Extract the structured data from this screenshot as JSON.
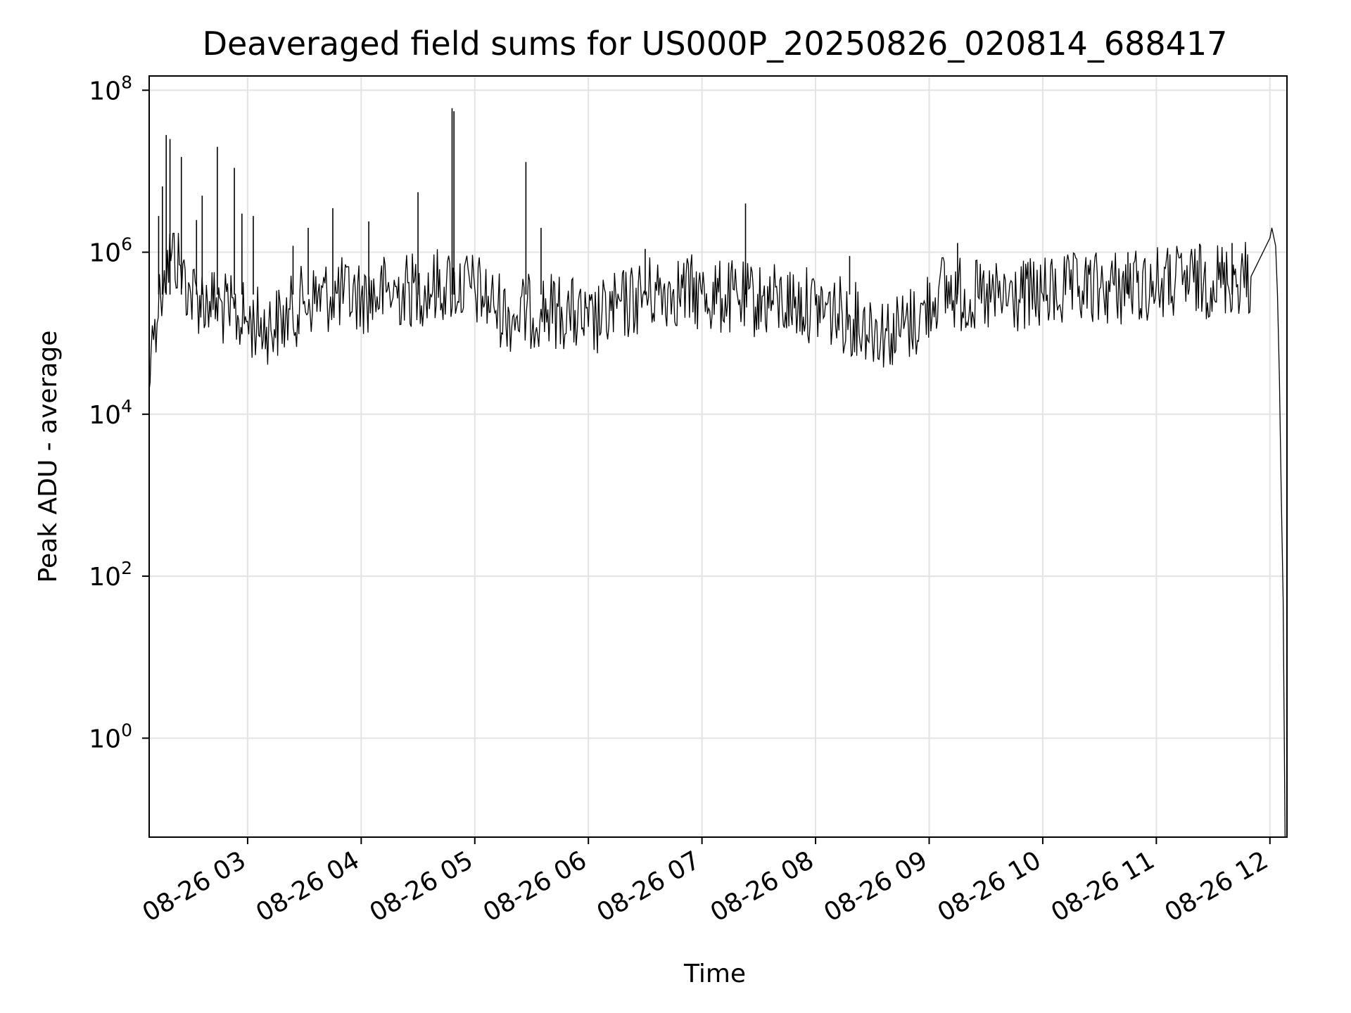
{
  "chart_data": {
    "type": "line",
    "title": "Deaveraged field sums for US000P_20250826_020814_688417",
    "xlabel": "Time",
    "ylabel": "Peak ADU - average",
    "yscale": "log",
    "ylim": [
      0.06,
      150000000
    ],
    "xlim": [
      "08-26 02:08",
      "08-26 12:09"
    ],
    "grid": true,
    "line_color": "#000000",
    "xticks": [
      "08-26 03",
      "08-26 04",
      "08-26 05",
      "08-26 06",
      "08-26 07",
      "08-26 08",
      "08-26 09",
      "08-26 10",
      "08-26 11",
      "08-26 12"
    ],
    "yticks": [
      {
        "base": "10",
        "exp": "0"
      },
      {
        "base": "10",
        "exp": "2"
      },
      {
        "base": "10",
        "exp": "4"
      },
      {
        "base": "10",
        "exp": "6"
      },
      {
        "base": "10",
        "exp": "8"
      }
    ],
    "series": [
      {
        "points": [
          [
            "08-26 02:08",
            20000
          ],
          [
            "08-26 02:09",
            60000
          ],
          [
            "08-26 02:11",
            150000
          ],
          [
            "08-26 02:14",
            300000
          ],
          [
            "08-26 02:16",
            600000
          ],
          [
            "08-26 02:20",
            1000000
          ],
          [
            "08-26 02:24",
            700000
          ],
          [
            "08-26 02:30",
            300000
          ],
          [
            "08-26 02:40",
            250000
          ],
          [
            "08-26 02:50",
            180000
          ],
          [
            "08-26 03:00",
            140000
          ],
          [
            "08-26 03:10",
            120000
          ],
          [
            "08-26 03:20",
            150000
          ],
          [
            "08-26 03:30",
            250000
          ],
          [
            "08-26 03:45",
            300000
          ],
          [
            "08-26 04:00",
            280000
          ],
          [
            "08-26 04:15",
            320000
          ],
          [
            "08-26 04:30",
            350000
          ],
          [
            "08-26 04:45",
            400000
          ],
          [
            "08-26 05:00",
            350000
          ],
          [
            "08-26 05:10",
            220000
          ],
          [
            "08-26 05:20",
            160000
          ],
          [
            "08-26 05:35",
            200000
          ],
          [
            "08-26 05:50",
            180000
          ],
          [
            "08-26 06:00",
            120000
          ],
          [
            "08-26 06:15",
            200000
          ],
          [
            "08-26 06:30",
            300000
          ],
          [
            "08-26 06:45",
            350000
          ],
          [
            "08-26 07:00",
            300000
          ],
          [
            "08-26 07:20",
            260000
          ],
          [
            "08-26 07:40",
            250000
          ],
          [
            "08-26 08:00",
            220000
          ],
          [
            "08-26 08:20",
            150000
          ],
          [
            "08-26 08:40",
            100000
          ],
          [
            "08-26 08:55",
            150000
          ],
          [
            "08-26 09:05",
            350000
          ],
          [
            "08-26 09:30",
            250000
          ],
          [
            "08-26 10:00",
            300000
          ],
          [
            "08-26 10:30",
            350000
          ],
          [
            "08-26 11:00",
            400000
          ],
          [
            "08-26 11:30",
            450000
          ],
          [
            "08-26 11:50",
            500000
          ],
          [
            "08-26 12:00",
            1500000
          ],
          [
            "08-26 12:01",
            2000000
          ],
          [
            "08-26 12:03",
            1200000
          ],
          [
            "08-26 12:04",
            300000
          ],
          [
            "08-26 12:05",
            30000
          ],
          [
            "08-26 12:06",
            1000
          ],
          [
            "08-26 12:07",
            50
          ],
          [
            "08-26 12:08",
            0.06
          ]
        ],
        "spikes": [
          [
            "08-26 02:13",
            2800000
          ],
          [
            "08-26 02:15",
            6500000
          ],
          [
            "08-26 02:17",
            28000000
          ],
          [
            "08-26 02:19",
            25000000
          ],
          [
            "08-26 02:25",
            15000000
          ],
          [
            "08-26 02:33",
            2500000
          ],
          [
            "08-26 02:36",
            5000000
          ],
          [
            "08-26 02:44",
            20000000
          ],
          [
            "08-26 02:53",
            11000000
          ],
          [
            "08-26 02:57",
            3000000
          ],
          [
            "08-26 03:03",
            2800000
          ],
          [
            "08-26 03:24",
            1200000
          ],
          [
            "08-26 03:32",
            2000000
          ],
          [
            "08-26 03:45",
            3500000
          ],
          [
            "08-26 04:04",
            2400000
          ],
          [
            "08-26 04:30",
            5500000
          ],
          [
            "08-26 04:48",
            60000000
          ],
          [
            "08-26 04:49",
            55000000
          ],
          [
            "08-26 05:27",
            13000000
          ],
          [
            "08-26 05:35",
            2000000
          ],
          [
            "08-26 06:30",
            1100000
          ],
          [
            "08-26 07:23",
            4000000
          ],
          [
            "08-26 08:18",
            900000
          ],
          [
            "08-26 09:15",
            1300000
          ],
          [
            "08-26 10:45",
            1000000
          ],
          [
            "08-26 11:40",
            1300000
          ]
        ]
      }
    ]
  }
}
